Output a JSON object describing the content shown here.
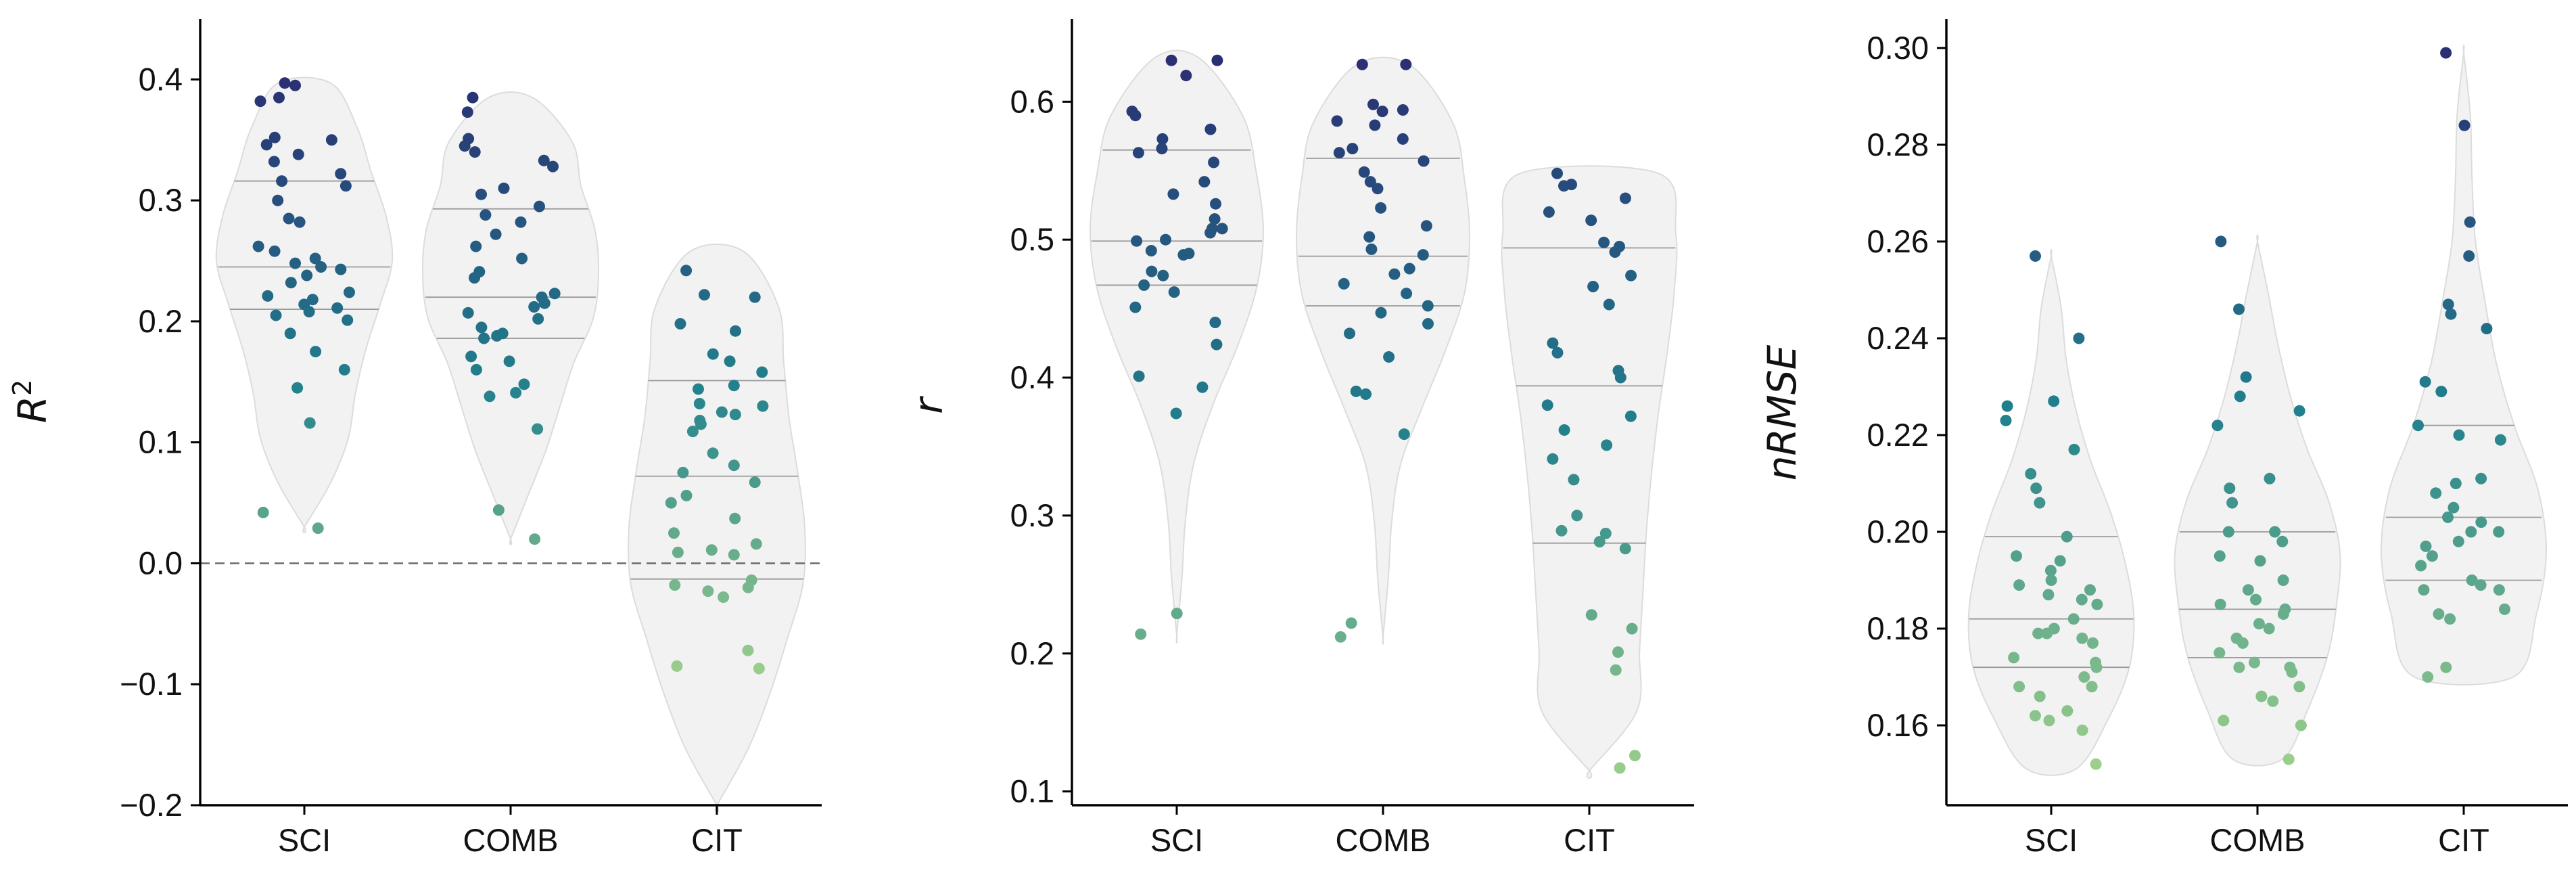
{
  "palette": {
    "dark": "#2a2f73",
    "mid": "#21808d",
    "light": "#9fd18b"
  },
  "chart_data": [
    {
      "type": "violin",
      "categories": [
        "SCI",
        "COMB",
        "CIT"
      ],
      "ylabel_base": "R",
      "ylabel_sup": "2",
      "ylim": [
        -0.2,
        0.45
      ],
      "yticks": [
        -0.2,
        -0.1,
        0.0,
        0.1,
        0.2,
        0.3,
        0.4
      ],
      "ytick_labels": [
        "−0.2",
        "−0.1",
        "0.0",
        "0.1",
        "0.2",
        "0.3",
        "0.4"
      ],
      "reference_line": 0.0,
      "color_range": [
        -0.1,
        0.4
      ],
      "quartiles": [
        [
          0.21,
          0.245,
          0.316
        ],
        [
          0.186,
          0.22,
          0.293
        ],
        [
          -0.013,
          0.072,
          0.151
        ]
      ],
      "points": [
        [
          0.397,
          0.395,
          0.385,
          0.382,
          0.352,
          0.35,
          0.346,
          0.338,
          0.332,
          0.322,
          0.316,
          0.312,
          0.3,
          0.285,
          0.282,
          0.262,
          0.258,
          0.252,
          0.248,
          0.245,
          0.243,
          0.238,
          0.232,
          0.224,
          0.221,
          0.218,
          0.214,
          0.211,
          0.208,
          0.205,
          0.201,
          0.19,
          0.175,
          0.16,
          0.145,
          0.116,
          0.042,
          0.029
        ],
        [
          0.385,
          0.373,
          0.351,
          0.345,
          0.34,
          0.333,
          0.328,
          0.31,
          0.305,
          0.295,
          0.288,
          0.282,
          0.272,
          0.262,
          0.252,
          0.241,
          0.236,
          0.223,
          0.22,
          0.215,
          0.212,
          0.207,
          0.202,
          0.195,
          0.19,
          0.188,
          0.186,
          0.171,
          0.167,
          0.16,
          0.148,
          0.141,
          0.138,
          0.111,
          0.044,
          0.02
        ],
        [
          0.242,
          0.222,
          0.22,
          0.198,
          0.192,
          0.173,
          0.167,
          0.158,
          0.147,
          0.144,
          0.132,
          0.13,
          0.125,
          0.123,
          0.118,
          0.115,
          0.109,
          0.091,
          0.081,
          0.075,
          0.067,
          0.056,
          0.05,
          0.037,
          0.025,
          0.016,
          0.011,
          0.009,
          0.007,
          -0.014,
          -0.018,
          -0.02,
          -0.023,
          -0.028,
          -0.072,
          -0.085,
          -0.087
        ]
      ],
      "violin_extent": [
        [
          0.03,
          0.397
        ],
        [
          0.02,
          0.385
        ],
        [
          -0.2,
          0.258
        ]
      ],
      "violin_halfwidths": [
        [
          0.0,
          0.3,
          0.5,
          0.58,
          0.7,
          0.86,
          1.0,
          0.93,
          0.76,
          0.6,
          0.3
        ],
        [
          0.0,
          0.2,
          0.4,
          0.56,
          0.72,
          0.94,
          1.0,
          0.96,
          0.8,
          0.7,
          0.25
        ],
        [
          0.0,
          0.35,
          0.6,
          0.8,
          0.98,
          1.0,
          0.92,
          0.82,
          0.76,
          0.7,
          0.3
        ]
      ]
    },
    {
      "type": "violin",
      "categories": [
        "SCI",
        "COMB",
        "CIT"
      ],
      "ylabel_base": "r",
      "ylabel_sup": "",
      "ylim": [
        0.09,
        0.66
      ],
      "yticks": [
        0.1,
        0.2,
        0.3,
        0.4,
        0.5,
        0.6
      ],
      "ytick_labels": [
        "0.1",
        "0.2",
        "0.3",
        "0.4",
        "0.5",
        "0.6"
      ],
      "color_range": [
        0.1,
        0.63
      ],
      "quartiles": [
        [
          0.467,
          0.499,
          0.565
        ],
        [
          0.452,
          0.488,
          0.559
        ],
        [
          0.28,
          0.394,
          0.494
        ]
      ],
      "points": [
        [
          0.63,
          0.63,
          0.619,
          0.593,
          0.59,
          0.58,
          0.573,
          0.566,
          0.563,
          0.556,
          0.542,
          0.533,
          0.526,
          0.515,
          0.508,
          0.508,
          0.505,
          0.5,
          0.499,
          0.492,
          0.49,
          0.489,
          0.477,
          0.474,
          0.467,
          0.462,
          0.451,
          0.44,
          0.424,
          0.401,
          0.393,
          0.374,
          0.229,
          0.214
        ],
        [
          0.627,
          0.627,
          0.598,
          0.594,
          0.593,
          0.586,
          0.583,
          0.573,
          0.566,
          0.563,
          0.557,
          0.549,
          0.542,
          0.537,
          0.523,
          0.51,
          0.502,
          0.493,
          0.489,
          0.479,
          0.475,
          0.468,
          0.461,
          0.452,
          0.447,
          0.439,
          0.432,
          0.415,
          0.39,
          0.388,
          0.359,
          0.222,
          0.212
        ],
        [
          0.548,
          0.54,
          0.539,
          0.53,
          0.52,
          0.514,
          0.498,
          0.495,
          0.491,
          0.474,
          0.466,
          0.453,
          0.425,
          0.418,
          0.405,
          0.4,
          0.38,
          0.372,
          0.362,
          0.351,
          0.341,
          0.326,
          0.3,
          0.289,
          0.287,
          0.281,
          0.276,
          0.228,
          0.218,
          0.201,
          0.188,
          0.126,
          0.117
        ]
      ],
      "violin_extent": [
        [
          0.213,
          0.632
        ],
        [
          0.212,
          0.627
        ],
        [
          0.115,
          0.548
        ]
      ],
      "violin_halfwidths": [
        [
          0.0,
          0.06,
          0.1,
          0.2,
          0.42,
          0.7,
          0.92,
          1.0,
          0.92,
          0.76,
          0.25
        ],
        [
          0.0,
          0.06,
          0.1,
          0.2,
          0.45,
          0.72,
          0.94,
          1.0,
          0.94,
          0.8,
          0.3
        ],
        [
          0.0,
          0.55,
          0.58,
          0.62,
          0.66,
          0.72,
          0.8,
          0.9,
          0.98,
          1.0,
          0.8
        ]
      ]
    },
    {
      "type": "violin",
      "categories": [
        "SCI",
        "COMB",
        "CIT"
      ],
      "ylabel_base": "nRMSE",
      "ylabel_sup": "",
      "ylim": [
        0.1435,
        0.306
      ],
      "yticks": [
        0.16,
        0.18,
        0.2,
        0.22,
        0.24,
        0.26,
        0.28,
        0.3
      ],
      "ytick_labels": [
        "0.16",
        "0.18",
        "0.20",
        "0.22",
        "0.24",
        "0.26",
        "0.28",
        "0.30"
      ],
      "color_range": [
        0.15,
        0.3
      ],
      "quartiles": [
        [
          0.172,
          0.182,
          0.199
        ],
        [
          0.174,
          0.184,
          0.2
        ],
        [
          0.19,
          0.203,
          0.222
        ]
      ],
      "points": [
        [
          0.257,
          0.24,
          0.227,
          0.226,
          0.223,
          0.217,
          0.212,
          0.209,
          0.206,
          0.199,
          0.195,
          0.194,
          0.192,
          0.19,
          0.189,
          0.188,
          0.187,
          0.186,
          0.185,
          0.182,
          0.18,
          0.179,
          0.179,
          0.178,
          0.177,
          0.174,
          0.173,
          0.172,
          0.17,
          0.168,
          0.168,
          0.166,
          0.163,
          0.162,
          0.161,
          0.159,
          0.152
        ],
        [
          0.26,
          0.246,
          0.232,
          0.228,
          0.225,
          0.222,
          0.211,
          0.209,
          0.206,
          0.2,
          0.2,
          0.198,
          0.195,
          0.194,
          0.19,
          0.188,
          0.186,
          0.185,
          0.184,
          0.183,
          0.181,
          0.18,
          0.178,
          0.177,
          0.175,
          0.173,
          0.172,
          0.172,
          0.171,
          0.168,
          0.166,
          0.165,
          0.161,
          0.16,
          0.153
        ],
        [
          0.299,
          0.284,
          0.264,
          0.257,
          0.247,
          0.245,
          0.242,
          0.231,
          0.229,
          0.222,
          0.22,
          0.219,
          0.211,
          0.21,
          0.208,
          0.205,
          0.203,
          0.202,
          0.2,
          0.2,
          0.198,
          0.197,
          0.195,
          0.193,
          0.19,
          0.189,
          0.188,
          0.188,
          0.184,
          0.183,
          0.182,
          0.172,
          0.17
        ]
      ],
      "violin_extent": [
        [
          0.151,
          0.257
        ],
        [
          0.153,
          0.26
        ],
        [
          0.17,
          0.299
        ]
      ],
      "violin_halfwidths": [
        [
          0.3,
          0.7,
          0.95,
          1.0,
          0.9,
          0.72,
          0.48,
          0.3,
          0.18,
          0.12,
          0.0
        ],
        [
          0.3,
          0.62,
          0.85,
          0.96,
          1.0,
          0.86,
          0.6,
          0.4,
          0.25,
          0.13,
          0.0
        ],
        [
          0.6,
          0.88,
          1.0,
          0.9,
          0.62,
          0.4,
          0.26,
          0.14,
          0.1,
          0.08,
          0.0
        ]
      ]
    }
  ]
}
